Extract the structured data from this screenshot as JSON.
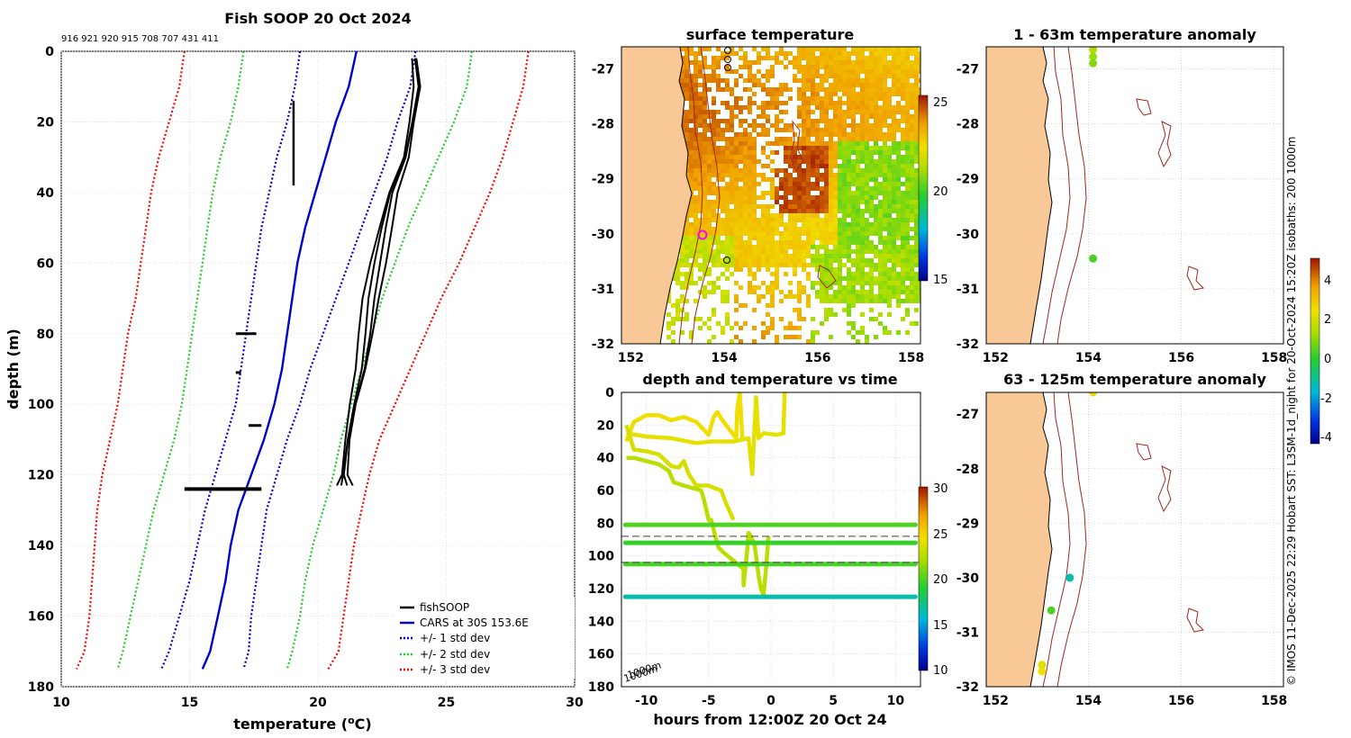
{
  "chart_data": [
    {
      "id": "profile",
      "type": "line",
      "title": "Fish SOOP 20 Oct 2024",
      "subtitle": "916 921 920 915 708 707 431 411",
      "xlabel": "temperature (",
      "xlabel_sup": "o",
      "xlabel_end": "C)",
      "ylabel": "depth (m)",
      "xlim": [
        10,
        30
      ],
      "ylim": [
        0,
        180
      ],
      "xticks": [
        "10",
        "15",
        "20",
        "25",
        "30"
      ],
      "yticks": [
        "0",
        "20",
        "40",
        "60",
        "80",
        "100",
        "120",
        "140",
        "160",
        "180"
      ],
      "depths": [
        0,
        10,
        20,
        30,
        40,
        50,
        60,
        70,
        80,
        90,
        100,
        110,
        120,
        130,
        140,
        150,
        160,
        170,
        175
      ],
      "cars": [
        21.5,
        21.2,
        20.7,
        20.3,
        19.9,
        19.5,
        19.2,
        19.0,
        18.8,
        18.6,
        18.3,
        17.9,
        17.4,
        16.9,
        16.6,
        16.4,
        16.1,
        15.8,
        15.5
      ],
      "series": [
        {
          "name": "+/- 3 std dev",
          "color": "#ff0000",
          "dash": true,
          "values_left": [
            14.8,
            14.6,
            14.2,
            13.8,
            13.5,
            13.3,
            13.1,
            12.9,
            12.6,
            12.4,
            12.2,
            11.9,
            11.6,
            11.4,
            11.3,
            11.2,
            11.1,
            10.9,
            10.6
          ],
          "values_right": [
            28.2,
            28.0,
            27.6,
            27.2,
            26.7,
            26.1,
            25.5,
            24.8,
            24.2,
            23.6,
            23.0,
            22.4,
            22.0,
            21.7,
            21.4,
            21.2,
            21.0,
            20.8,
            20.4
          ]
        },
        {
          "name": "+/- 2 std dev",
          "color": "#22cc22",
          "dash": true,
          "values_left": [
            17.1,
            16.9,
            16.6,
            16.2,
            15.9,
            15.7,
            15.5,
            15.3,
            15.1,
            14.9,
            14.7,
            14.4,
            14.0,
            13.6,
            13.3,
            13.0,
            12.7,
            12.4,
            12.2
          ],
          "values_right": [
            26.0,
            25.8,
            25.3,
            24.7,
            24.1,
            23.5,
            23.0,
            22.5,
            22.1,
            21.7,
            21.3,
            20.9,
            20.6,
            20.2,
            19.8,
            19.5,
            19.3,
            19.0,
            18.8
          ]
        },
        {
          "name": "+/- 1 std dev",
          "color": "#0000cc",
          "dash": true,
          "values_left": [
            19.3,
            19.1,
            18.8,
            18.4,
            18.1,
            17.8,
            17.6,
            17.4,
            17.2,
            17.0,
            16.8,
            16.4,
            16.0,
            15.6,
            15.3,
            15.0,
            14.6,
            14.2,
            13.9
          ],
          "values_right": [
            23.8,
            23.6,
            23.1,
            22.7,
            22.2,
            21.7,
            21.2,
            20.7,
            20.2,
            19.7,
            19.3,
            18.8,
            18.4,
            18.0,
            17.8,
            17.6,
            17.4,
            17.3,
            17.1
          ]
        }
      ],
      "legend": [
        "fishSOOP",
        "CARS at 30S 153.6E",
        "+/- 1 std dev",
        "+/- 2 std dev",
        "+/- 3 std dev"
      ]
    },
    {
      "id": "surface",
      "type": "heatmap",
      "title": "surface temperature",
      "xticks": [
        "152",
        "154",
        "156",
        "158"
      ],
      "yticks": [
        "-27",
        "-28",
        "-29",
        "-30",
        "-31",
        "-32"
      ],
      "xlim": [
        151.8,
        158.2
      ],
      "ylim": [
        -32,
        -26.6
      ],
      "colorbar_ticks": [
        "25",
        "20",
        "15"
      ],
      "clim": [
        15,
        25.5
      ]
    },
    {
      "id": "anom1",
      "type": "scatter",
      "title": "1 - 63m temperature anomaly",
      "xticks": [
        "152",
        "154",
        "156",
        "158"
      ],
      "yticks": [
        "-27",
        "-28",
        "-29",
        "-30",
        "-31",
        "-32"
      ],
      "xlim": [
        151.8,
        158.2
      ],
      "ylim": [
        -32,
        -26.6
      ],
      "colorbar_ticks": [
        "4",
        "2",
        "0",
        "-2",
        "-4"
      ],
      "clim": [
        -4.5,
        5
      ],
      "points": [
        {
          "lon": 154.1,
          "lat": -26.65,
          "v": 1.3
        },
        {
          "lon": 154.1,
          "lat": -26.78,
          "v": 1.0
        },
        {
          "lon": 154.1,
          "lat": -26.9,
          "v": 0.8
        },
        {
          "lon": 154.1,
          "lat": -30.45,
          "v": 0.2
        }
      ]
    },
    {
      "id": "timeplot",
      "type": "line",
      "title": "depth and temperature vs time",
      "xlabel": "hours from 12:00Z 20 Oct 24",
      "xlim": [
        -12,
        12
      ],
      "ylim": [
        0,
        180
      ],
      "xticks": [
        "-10",
        "-5",
        "0",
        "5",
        "10"
      ],
      "yticks": [
        "0",
        "20",
        "40",
        "60",
        "80",
        "100",
        "120",
        "140",
        "160",
        "180"
      ],
      "colorbar_ticks": [
        "30",
        "25",
        "20",
        "15",
        "10"
      ],
      "clim": [
        10,
        30
      ],
      "isobath_label": "1000m",
      "dashed_lines": [
        88,
        104
      ],
      "bands": [
        {
          "depth": 81,
          "temp": 20.0
        },
        {
          "depth": 92,
          "temp": 19.5
        },
        {
          "depth": 105,
          "temp": 19.8
        },
        {
          "depth": 125,
          "temp": 16.5
        }
      ],
      "traces": [
        {
          "temp": 24.5,
          "pts": [
            [
              -11.6,
              30
            ],
            [
              -11,
              18
            ],
            [
              -10,
              14
            ],
            [
              -9,
              14
            ],
            [
              -8,
              17
            ],
            [
              -7,
              15
            ],
            [
              -6,
              18
            ],
            [
              -5,
              26
            ],
            [
              -4.6,
              15
            ],
            [
              -4.3,
              12
            ],
            [
              -4,
              16
            ],
            [
              -3.4,
              22
            ],
            [
              -2.8,
              28
            ],
            [
              -2.7,
              10
            ],
            [
              -2.5,
              0
            ],
            [
              -2.3,
              28
            ]
          ]
        },
        {
          "temp": 24.0,
          "pts": [
            [
              -11.6,
              25
            ],
            [
              -10,
              27
            ],
            [
              -8,
              28
            ],
            [
              -6,
              31
            ],
            [
              -4.8,
              30
            ],
            [
              -3,
              30
            ],
            [
              -1.8,
              28
            ],
            [
              -1.5,
              50
            ],
            [
              -1.2,
              3
            ],
            [
              -1,
              28
            ],
            [
              -0.6,
              25
            ],
            [
              0.5,
              26
            ],
            [
              1,
              25
            ],
            [
              1.1,
              0
            ]
          ]
        },
        {
          "temp": 23.5,
          "pts": [
            [
              -11.6,
              20
            ],
            [
              -11,
              35
            ],
            [
              -10,
              36
            ],
            [
              -9,
              38
            ],
            [
              -8,
              45
            ],
            [
              -7.4,
              46
            ],
            [
              -7,
              42
            ],
            [
              -6.6,
              50
            ],
            [
              -6,
              57
            ],
            [
              -5,
              57
            ],
            [
              -4.7,
              58
            ],
            [
              -4,
              60
            ],
            [
              -3.6,
              68
            ],
            [
              -3,
              78
            ]
          ]
        },
        {
          "temp": 22.5,
          "pts": [
            [
              -11.6,
              40
            ],
            [
              -11,
              40
            ],
            [
              -10,
              42
            ],
            [
              -9,
              44
            ],
            [
              -8.2,
              48
            ],
            [
              -7.8,
              55
            ],
            [
              -7,
              57
            ],
            [
              -5.6,
              60
            ],
            [
              -5.4,
              65
            ],
            [
              -5,
              78
            ],
            [
              -4.8,
              78
            ],
            [
              -4.6,
              84
            ],
            [
              -4.4,
              90
            ],
            [
              -4.2,
              95
            ],
            [
              -3.8,
              98
            ],
            [
              -2.2,
              108
            ],
            [
              -2.2,
              118
            ],
            [
              -1.9,
              96
            ],
            [
              -1.8,
              86
            ],
            [
              -1.6,
              88
            ],
            [
              -1.3,
              94
            ],
            [
              -1,
              112
            ],
            [
              -0.8,
              120
            ],
            [
              -0.6,
              124
            ],
            [
              -0.4,
              108
            ],
            [
              -0.3,
              98
            ],
            [
              -0.2,
              88
            ]
          ]
        }
      ]
    },
    {
      "id": "anom2",
      "type": "scatter",
      "title": "63 - 125m temperature anomaly",
      "xticks": [
        "152",
        "154",
        "156",
        "158"
      ],
      "yticks": [
        "-27",
        "-28",
        "-29",
        "-30",
        "-31",
        "-32"
      ],
      "xlim": [
        151.8,
        158.2
      ],
      "ylim": [
        -32,
        -26.6
      ],
      "points": [
        {
          "lon": 154.1,
          "lat": -26.6,
          "v": 2.5
        },
        {
          "lon": 153.6,
          "lat": -30.0,
          "v": -1.4
        },
        {
          "lon": 153.2,
          "lat": -30.6,
          "v": 0.2
        },
        {
          "lon": 153.0,
          "lat": -31.6,
          "v": 2.1
        },
        {
          "lon": 153.0,
          "lat": -31.72,
          "v": 2.3
        }
      ]
    }
  ],
  "credit": "© IMOS 11-Dec-2025 22:29 Hobart SST: L3SM-1d_night for 20-Oct-2024 15:20Z isobaths: 200  1000m",
  "colors": {
    "land": "#f8c896",
    "isobath": "#a0281e",
    "coast": "#000000",
    "cars": "#0000cc",
    "fishsoop": "#000000"
  }
}
